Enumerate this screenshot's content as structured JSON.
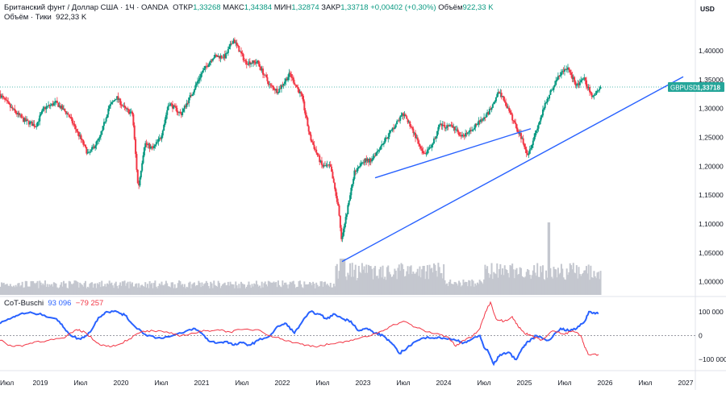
{
  "header": {
    "symbol": "Британский фунт / Доллар США · 1Ч · OANDA",
    "open_label": "ОТКР",
    "open": "1,33268",
    "high_label": "МАКС",
    "high": "1,34384",
    "low_label": "МИН",
    "low": "1,32874",
    "close_label": "ЗАКР",
    "close": "1,33718",
    "change": "+0,00402 (+0,30%)",
    "volume_label": "Объём",
    "volume": "922,33 K"
  },
  "volume_row": {
    "label": "Объём · Тики",
    "value": "922,33 K"
  },
  "currency": "USD",
  "price_tag": {
    "symbol": "GBPUSD",
    "value": "1,33718"
  },
  "indicator": {
    "name": "CoT-Buschi",
    "value_blue": "93 096",
    "value_red": "−79 257"
  },
  "colors": {
    "up": "#089981",
    "down": "#f23645",
    "trend": "#2962ff",
    "volume": "#c4c7cf",
    "price_tag": "#26a69a"
  },
  "chart_data": {
    "type": "candlestick",
    "price_axis": {
      "range": [
        0.98,
        1.46
      ],
      "ticks": [
        "1,40000",
        "1,35000",
        "1,30000",
        "1,25000",
        "1,20000",
        "1,15000",
        "1,10000",
        "1,05000",
        "1,00000"
      ]
    },
    "time_axis": {
      "labels": [
        "Июл",
        "2019",
        "Июл",
        "2020",
        "Июл",
        "2021",
        "Июл",
        "2022",
        "Июл",
        "2023",
        "Июл",
        "2024",
        "Июл",
        "2025",
        "Июл",
        "2026",
        "Июл",
        "2027"
      ]
    },
    "price_path": [
      [
        2018.5,
        1.325
      ],
      [
        2018.65,
        1.3
      ],
      [
        2018.8,
        1.28
      ],
      [
        2018.95,
        1.27
      ],
      [
        2019.05,
        1.3
      ],
      [
        2019.2,
        1.31
      ],
      [
        2019.35,
        1.29
      ],
      [
        2019.5,
        1.25
      ],
      [
        2019.6,
        1.22
      ],
      [
        2019.75,
        1.25
      ],
      [
        2019.85,
        1.3
      ],
      [
        2019.95,
        1.32
      ],
      [
        2020.05,
        1.3
      ],
      [
        2020.15,
        1.29
      ],
      [
        2020.22,
        1.16
      ],
      [
        2020.3,
        1.24
      ],
      [
        2020.4,
        1.23
      ],
      [
        2020.5,
        1.25
      ],
      [
        2020.6,
        1.31
      ],
      [
        2020.75,
        1.29
      ],
      [
        2020.9,
        1.33
      ],
      [
        2021.0,
        1.36
      ],
      [
        2021.15,
        1.39
      ],
      [
        2021.3,
        1.39
      ],
      [
        2021.4,
        1.42
      ],
      [
        2021.55,
        1.38
      ],
      [
        2021.7,
        1.38
      ],
      [
        2021.85,
        1.34
      ],
      [
        2021.95,
        1.33
      ],
      [
        2022.1,
        1.36
      ],
      [
        2022.25,
        1.32
      ],
      [
        2022.35,
        1.25
      ],
      [
        2022.5,
        1.2
      ],
      [
        2022.6,
        1.2
      ],
      [
        2022.7,
        1.13
      ],
      [
        2022.74,
        1.07
      ],
      [
        2022.82,
        1.13
      ],
      [
        2022.9,
        1.19
      ],
      [
        2023.0,
        1.21
      ],
      [
        2023.1,
        1.21
      ],
      [
        2023.2,
        1.23
      ],
      [
        2023.35,
        1.26
      ],
      [
        2023.5,
        1.29
      ],
      [
        2023.6,
        1.27
      ],
      [
        2023.75,
        1.22
      ],
      [
        2023.85,
        1.23
      ],
      [
        2023.95,
        1.27
      ],
      [
        2024.1,
        1.27
      ],
      [
        2024.25,
        1.25
      ],
      [
        2024.4,
        1.27
      ],
      [
        2024.55,
        1.29
      ],
      [
        2024.7,
        1.33
      ],
      [
        2024.8,
        1.3
      ],
      [
        2024.9,
        1.27
      ],
      [
        2025.0,
        1.24
      ],
      [
        2025.05,
        1.22
      ],
      [
        2025.15,
        1.26
      ],
      [
        2025.3,
        1.32
      ],
      [
        2025.45,
        1.36
      ],
      [
        2025.55,
        1.37
      ],
      [
        2025.65,
        1.34
      ],
      [
        2025.75,
        1.35
      ],
      [
        2025.85,
        1.32
      ],
      [
        2025.95,
        1.337
      ]
    ],
    "trendlines": [
      {
        "from": [
          2022.74,
          1.035
        ],
        "to": [
          2026.97,
          1.355
        ]
      },
      {
        "from": [
          2023.15,
          1.18
        ],
        "to": [
          2025.08,
          1.265
        ]
      }
    ],
    "indicator_axis": {
      "range": [
        -140000,
        150000
      ],
      "ticks": [
        "100 000",
        "0",
        "−100 000"
      ]
    },
    "indicator_series": [
      {
        "name": "blue",
        "points": [
          [
            2018.5,
            50000
          ],
          [
            2018.65,
            75000
          ],
          [
            2018.75,
            90000
          ],
          [
            2018.9,
            95000
          ],
          [
            2019.05,
            85000
          ],
          [
            2019.2,
            70000
          ],
          [
            2019.3,
            30000
          ],
          [
            2019.4,
            -5000
          ],
          [
            2019.5,
            -15000
          ],
          [
            2019.62,
            15000
          ],
          [
            2019.72,
            75000
          ],
          [
            2019.82,
            100000
          ],
          [
            2019.95,
            100000
          ],
          [
            2020.05,
            85000
          ],
          [
            2020.15,
            45000
          ],
          [
            2020.3,
            5000
          ],
          [
            2020.45,
            -10000
          ],
          [
            2020.6,
            -5000
          ],
          [
            2020.75,
            10000
          ],
          [
            2020.9,
            30000
          ],
          [
            2021.0,
            10000
          ],
          [
            2021.1,
            -25000
          ],
          [
            2021.2,
            -30000
          ],
          [
            2021.3,
            -25000
          ],
          [
            2021.4,
            -40000
          ],
          [
            2021.5,
            -30000
          ],
          [
            2021.6,
            -40000
          ],
          [
            2021.7,
            -20000
          ],
          [
            2021.85,
            0
          ],
          [
            2021.95,
            40000
          ],
          [
            2022.05,
            50000
          ],
          [
            2022.15,
            10000
          ],
          [
            2022.25,
            60000
          ],
          [
            2022.35,
            100000
          ],
          [
            2022.45,
            90000
          ],
          [
            2022.55,
            70000
          ],
          [
            2022.65,
            90000
          ],
          [
            2022.75,
            70000
          ],
          [
            2022.85,
            60000
          ],
          [
            2022.95,
            20000
          ],
          [
            2023.05,
            30000
          ],
          [
            2023.15,
            10000
          ],
          [
            2023.25,
            0
          ],
          [
            2023.35,
            -30000
          ],
          [
            2023.45,
            -75000
          ],
          [
            2023.55,
            -50000
          ],
          [
            2023.65,
            -25000
          ],
          [
            2023.8,
            -5000
          ],
          [
            2023.9,
            -10000
          ],
          [
            2024.0,
            -10000
          ],
          [
            2024.15,
            -20000
          ],
          [
            2024.25,
            -30000
          ],
          [
            2024.35,
            -15000
          ],
          [
            2024.45,
            0
          ],
          [
            2024.5,
            -50000
          ],
          [
            2024.55,
            -65000
          ],
          [
            2024.62,
            -120000
          ],
          [
            2024.7,
            -80000
          ],
          [
            2024.8,
            -70000
          ],
          [
            2024.9,
            -100000
          ],
          [
            2024.98,
            -50000
          ],
          [
            2025.05,
            -25000
          ],
          [
            2025.15,
            0
          ],
          [
            2025.3,
            -20000
          ],
          [
            2025.45,
            30000
          ],
          [
            2025.55,
            20000
          ],
          [
            2025.65,
            30000
          ],
          [
            2025.75,
            60000
          ],
          [
            2025.8,
            100000
          ],
          [
            2025.87,
            95000
          ],
          [
            2025.92,
            93096
          ]
        ]
      },
      {
        "name": "red",
        "points": [
          [
            2018.5,
            -20000
          ],
          [
            2018.65,
            -45000
          ],
          [
            2018.8,
            -40000
          ],
          [
            2018.95,
            -25000
          ],
          [
            2019.1,
            -20000
          ],
          [
            2019.3,
            -10000
          ],
          [
            2019.45,
            25000
          ],
          [
            2019.55,
            15000
          ],
          [
            2019.7,
            -30000
          ],
          [
            2019.82,
            -45000
          ],
          [
            2019.95,
            -40000
          ],
          [
            2020.1,
            -15000
          ],
          [
            2020.25,
            15000
          ],
          [
            2020.4,
            20000
          ],
          [
            2020.6,
            10000
          ],
          [
            2020.75,
            0
          ],
          [
            2020.9,
            10000
          ],
          [
            2021.05,
            20000
          ],
          [
            2021.2,
            25000
          ],
          [
            2021.35,
            15000
          ],
          [
            2021.5,
            25000
          ],
          [
            2021.7,
            25000
          ],
          [
            2021.85,
            0
          ],
          [
            2022.0,
            -15000
          ],
          [
            2022.15,
            -30000
          ],
          [
            2022.3,
            -40000
          ],
          [
            2022.45,
            -45000
          ],
          [
            2022.6,
            -35000
          ],
          [
            2022.75,
            -30000
          ],
          [
            2022.9,
            -15000
          ],
          [
            2023.05,
            -5000
          ],
          [
            2023.2,
            15000
          ],
          [
            2023.35,
            40000
          ],
          [
            2023.5,
            60000
          ],
          [
            2023.65,
            35000
          ],
          [
            2023.8,
            15000
          ],
          [
            2023.95,
            5000
          ],
          [
            2024.05,
            -5000
          ],
          [
            2024.15,
            -45000
          ],
          [
            2024.25,
            -20000
          ],
          [
            2024.35,
            -5000
          ],
          [
            2024.45,
            30000
          ],
          [
            2024.52,
            100000
          ],
          [
            2024.58,
            140000
          ],
          [
            2024.65,
            70000
          ],
          [
            2024.75,
            60000
          ],
          [
            2024.85,
            80000
          ],
          [
            2024.92,
            40000
          ],
          [
            2025.0,
            10000
          ],
          [
            2025.1,
            0
          ],
          [
            2025.2,
            -20000
          ],
          [
            2025.35,
            20000
          ],
          [
            2025.5,
            5000
          ],
          [
            2025.6,
            20000
          ],
          [
            2025.7,
            0
          ],
          [
            2025.75,
            -50000
          ],
          [
            2025.8,
            -80000
          ],
          [
            2025.92,
            -79257
          ]
        ]
      }
    ]
  }
}
